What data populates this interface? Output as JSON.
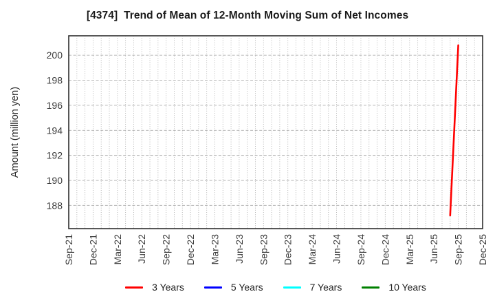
{
  "title": "[4374]  Trend of Mean of 12-Month Moving Sum of Net Incomes",
  "chart_data": {
    "type": "line",
    "title": "[4374]  Trend of Mean of 12-Month Moving Sum of Net Incomes",
    "xlabel": "",
    "ylabel": "Amount (million yen)",
    "x_start": "Sep-21",
    "x_end": "Dec-25",
    "x_minor_grid": "monthly",
    "x_ticks": [
      "Sep-21",
      "Dec-21",
      "Mar-22",
      "Jun-22",
      "Sep-22",
      "Dec-22",
      "Mar-23",
      "Jun-23",
      "Sep-23",
      "Dec-23",
      "Mar-24",
      "Jun-24",
      "Sep-24",
      "Dec-24",
      "Mar-25",
      "Jun-25",
      "Sep-25",
      "Dec-25"
    ],
    "y_ticks": [
      188,
      190,
      192,
      194,
      196,
      198,
      200
    ],
    "ylim": [
      186.15,
      201.55
    ],
    "grid": true,
    "legend_position": "bottom",
    "series": [
      {
        "name": "3 Years",
        "color": "#ff0000",
        "points": [
          {
            "x": "Aug-25",
            "y": 187.2
          },
          {
            "x": "Sep-25",
            "y": 200.8
          }
        ]
      },
      {
        "name": "5 Years",
        "color": "#0000ff",
        "points": []
      },
      {
        "name": "7 Years",
        "color": "#00ffff",
        "points": []
      },
      {
        "name": "10 Years",
        "color": "#008000",
        "points": []
      }
    ],
    "colors": {
      "grid": "#b0b0b0",
      "border": "#2e2e2e",
      "tick_text": "#3a3a3a",
      "title_text": "#1a1a1a"
    }
  }
}
